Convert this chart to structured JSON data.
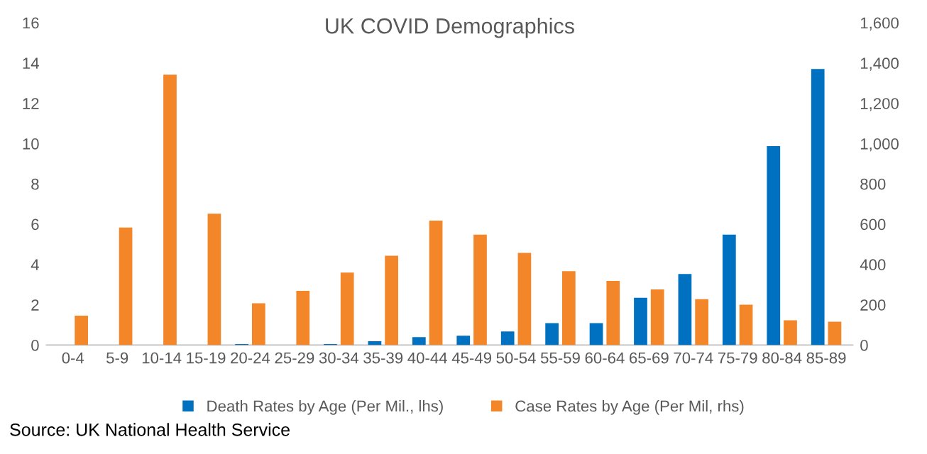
{
  "chart_data": {
    "type": "bar",
    "title": "UK COVID Demographics",
    "categories": [
      "0-4",
      "5-9",
      "10-14",
      "15-19",
      "20-24",
      "25-29",
      "30-34",
      "35-39",
      "40-44",
      "45-49",
      "50-54",
      "55-59",
      "60-64",
      "65-69",
      "70-74",
      "75-79",
      "80-84",
      "85-89"
    ],
    "series": [
      {
        "name": "Death Rates by Age (Per Mil., lhs)",
        "color": "#0070c0",
        "values": [
          0,
          0,
          0,
          0,
          0.05,
          0,
          0.05,
          0.19,
          0.39,
          0.46,
          0.67,
          1.09,
          1.09,
          2.35,
          3.53,
          5.48,
          9.87,
          13.7
        ]
      },
      {
        "name": "Case Rates by Age (Per Mil, rhs)",
        "color": "#f4862a",
        "axis": "y2",
        "values": [
          146,
          583,
          1342,
          652,
          207,
          269,
          360,
          443,
          618,
          548,
          457,
          367,
          318,
          276,
          228,
          200,
          123,
          116
        ]
      }
    ],
    "ylim": [
      0,
      16
    ],
    "yticks": [
      0,
      2,
      4,
      6,
      8,
      10,
      12,
      14,
      16
    ],
    "y2lim": [
      0,
      1600
    ],
    "y2ticks": [
      {
        "value": 0,
        "label": "0"
      },
      {
        "value": 200,
        "label": "200"
      },
      {
        "value": 400,
        "label": "400"
      },
      {
        "value": 600,
        "label": "600"
      },
      {
        "value": 800,
        "label": "800"
      },
      {
        "value": 1000,
        "label": "1,000"
      },
      {
        "value": 1200,
        "label": "1,200"
      },
      {
        "value": 1400,
        "label": "1,400"
      },
      {
        "value": 1600,
        "label": "1,600"
      }
    ],
    "grid": false,
    "legend": "bottom",
    "annotations": [
      "Source: UK National Health Service"
    ]
  }
}
